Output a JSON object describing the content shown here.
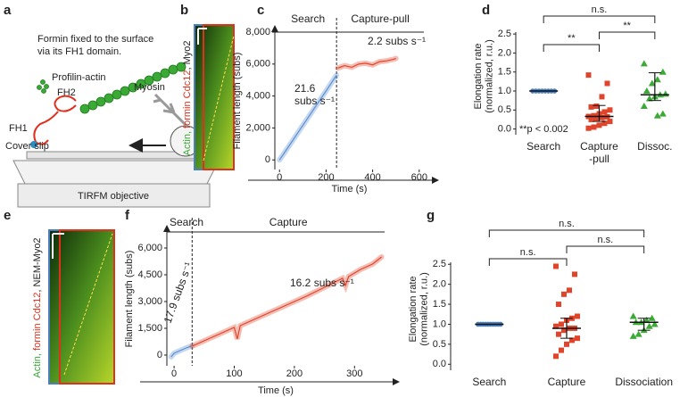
{
  "panel_labels": [
    "a",
    "b",
    "c",
    "d",
    "e",
    "f",
    "g"
  ],
  "schematic": {
    "caption": [
      "Formin fixed to the surface",
      "via its FH1 domain."
    ],
    "profilin_actin": "Profilin-actin",
    "fh2": "FH2",
    "fh1": "FH1",
    "myosin": "Myosin",
    "cover_slip": "Cover slip",
    "objective": "TIRFM objective"
  },
  "kymographs": [
    {
      "label": [
        {
          "text": "Actin, ",
          "color": "#3aa935"
        },
        {
          "text": "formin Cdc12",
          "color": "#e0301e"
        },
        {
          "text": ", Myo2",
          "color": "#222222"
        }
      ]
    },
    {
      "label": [
        {
          "text": "Actin, ",
          "color": "#3aa935"
        },
        {
          "text": "formin Cdc12",
          "color": "#e0301e"
        },
        {
          "text": ", NEM-Myo2",
          "color": "#222222"
        }
      ]
    }
  ],
  "chart_data": [
    {
      "type": "line",
      "xlabel": "Time (s)",
      "ylabel": "Filament length (subs)",
      "xlim": [
        -20,
        620
      ],
      "xticks": [
        0,
        200,
        400,
        600
      ],
      "ylim": [
        -600,
        8000
      ],
      "yticks": [
        0,
        {
          "value": 2000,
          "label": "2,000"
        },
        {
          "value": 4000,
          "label": "4,000"
        },
        {
          "value": 6000,
          "label": "6,000"
        },
        {
          "value": 8000,
          "label": "8,000"
        }
      ],
      "transition": 245,
      "series": [
        {
          "name": "Search",
          "color": "#5b8fd0",
          "rate_label": "21.6\nsubs s⁻¹",
          "x": [
            0,
            40,
            80,
            120,
            160,
            200,
            245
          ],
          "values": [
            0,
            860,
            1730,
            2590,
            3460,
            4320,
            5300
          ]
        },
        {
          "name": "Capture-pull",
          "color": "#e0452b",
          "rate_label": "2.2 subs s⁻¹",
          "x": [
            250,
            280,
            310,
            340,
            370,
            400,
            430,
            460,
            490,
            500
          ],
          "values": [
            5750,
            5900,
            5800,
            6000,
            6050,
            5950,
            6150,
            6200,
            6300,
            6350
          ]
        }
      ]
    },
    {
      "type": "dot",
      "ylabel": "Elongation rate\n(normalized, r.u.)",
      "ylim": [
        -0.15,
        2.55
      ],
      "yticks": [
        {
          "value": 0,
          "label": "0.0"
        },
        {
          "value": 0.5,
          "label": "0.5"
        },
        {
          "value": 1,
          "label": "1.0"
        },
        {
          "value": 1.5,
          "label": "1.5"
        },
        {
          "value": 2,
          "label": "2.0"
        },
        {
          "value": 2.5,
          "label": "2.5"
        }
      ],
      "categories": [
        "Search",
        "Capture\n-pull",
        "Dissoc."
      ],
      "groups": [
        {
          "color": "#4a7fc0",
          "marker": "circle",
          "values": [
            1,
            1,
            1,
            1,
            1,
            1,
            1,
            1
          ],
          "median": 1
        },
        {
          "color": "#e0452b",
          "marker": "square",
          "values": [
            1.42,
            1.2,
            0.85,
            0.6,
            0.58,
            0.5,
            0.45,
            0.4,
            0.35,
            0.33,
            0.32,
            0.3,
            0.28,
            0.25,
            0.2,
            0.15,
            0.1,
            0.05,
            0.02
          ],
          "median": 0.33,
          "range": [
            0.2,
            0.62
          ]
        },
        {
          "color": "#3aa935",
          "marker": "triangle",
          "values": [
            1.72,
            1.5,
            1.3,
            1.2,
            1.0,
            0.92,
            0.9,
            0.85,
            0.8,
            0.6,
            0.4,
            0.35
          ],
          "median": 0.9,
          "range": [
            0.75,
            1.48
          ]
        }
      ],
      "comparisons": [
        {
          "groups": [
            0,
            2
          ],
          "label": "n.s."
        },
        {
          "groups": [
            1,
            2
          ],
          "label": "**"
        },
        {
          "groups": [
            0,
            1
          ],
          "label": "**"
        }
      ],
      "note": "**p < 0.002"
    },
    {
      "type": "line",
      "xlabel": "Time (s)",
      "ylabel": "Filament length (subs)",
      "xlim": [
        -12,
        350
      ],
      "xticks": [
        0,
        100,
        200,
        300
      ],
      "ylim": [
        -600,
        6900
      ],
      "yticks": [
        0,
        {
          "value": 1500,
          "label": "1,500"
        },
        {
          "value": 3000,
          "label": "3,000"
        },
        {
          "value": 4500,
          "label": "4,500"
        },
        {
          "value": 6000,
          "label": "6,000"
        }
      ],
      "transition": 30,
      "series": [
        {
          "name": "Search",
          "color": "#5b8fd0",
          "rate_label": "17.9 subs s⁻¹",
          "x": [
            -5,
            0,
            10,
            20,
            30
          ],
          "values": [
            -100,
            100,
            250,
            400,
            520
          ]
        },
        {
          "name": "Capture",
          "color": "#e0452b",
          "rate_label": "16.2 subs s⁻¹",
          "x": [
            30,
            60,
            90,
            100,
            105,
            110,
            130,
            160,
            190,
            220,
            250,
            280,
            285,
            290,
            310,
            330,
            345
          ],
          "values": [
            500,
            950,
            1400,
            1550,
            900,
            1650,
            1950,
            2400,
            2850,
            3300,
            3800,
            4300,
            3900,
            4400,
            4800,
            5100,
            5500
          ]
        }
      ]
    },
    {
      "type": "dot",
      "ylabel": "Elongation rate\n(normalized, r.u.)",
      "ylim": [
        -0.15,
        2.55
      ],
      "yticks": [
        {
          "value": 0,
          "label": "0.0"
        },
        {
          "value": 0.5,
          "label": "0.5"
        },
        {
          "value": 1,
          "label": "1.0"
        },
        {
          "value": 1.5,
          "label": "1.5"
        },
        {
          "value": 2,
          "label": "2.0"
        },
        {
          "value": 2.5,
          "label": "2.5"
        }
      ],
      "categories": [
        "Search",
        "Capture",
        "Dissociation"
      ],
      "groups": [
        {
          "color": "#4a7fc0",
          "marker": "circle",
          "values": [
            1,
            1,
            1,
            1,
            1,
            1,
            1,
            1,
            1,
            1
          ],
          "median": 1
        },
        {
          "color": "#e0452b",
          "marker": "square",
          "values": [
            2.45,
            2.25,
            1.85,
            1.75,
            1.5,
            1.2,
            1.15,
            1.1,
            1.0,
            0.95,
            0.9,
            0.9,
            0.85,
            0.75,
            0.65,
            0.6,
            0.5,
            0.35,
            0.2
          ],
          "median": 0.9,
          "range": [
            0.65,
            1.15
          ]
        },
        {
          "color": "#3aa935",
          "marker": "triangle",
          "values": [
            1.2,
            1.15,
            1.1,
            1.05,
            1.05,
            1.0,
            0.95,
            0.85,
            0.75,
            0.7
          ],
          "median": 1.05,
          "range": [
            0.85,
            1.15
          ]
        }
      ],
      "comparisons": [
        {
          "groups": [
            0,
            2
          ],
          "label": "n.s."
        },
        {
          "groups": [
            1,
            2
          ],
          "label": "n.s."
        },
        {
          "groups": [
            0,
            1
          ],
          "label": "n.s."
        }
      ]
    }
  ]
}
